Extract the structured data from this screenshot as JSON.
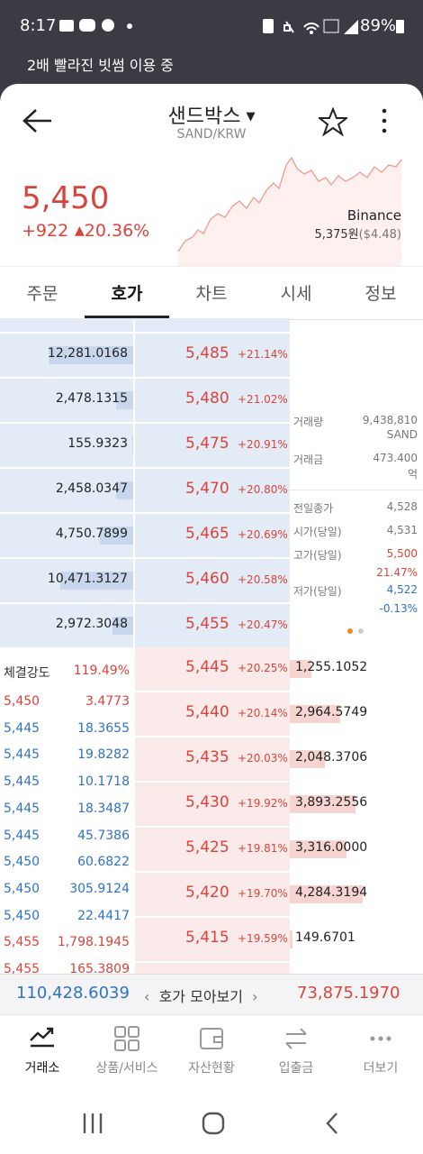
{
  "status_bar": {
    "time": "8:17",
    "battery": "89%"
  },
  "banner": "2배 빨라진 빗썸 이용 중",
  "header": {
    "name": "샌드박스",
    "pair": "SAND/KRW"
  },
  "price": {
    "current": "5,450",
    "change": "+922",
    "change_pct": "20.36%",
    "exchange": "Binance",
    "ref_price": "5,375원",
    "ref_usd": "($4.48)"
  },
  "tabs": {
    "items": [
      "주문",
      "호가",
      "차트",
      "시세",
      "정보"
    ],
    "active": 1
  },
  "asks": [
    {
      "volume": "12,281.0168",
      "price": "5,485",
      "pct": "+21.14%"
    },
    {
      "volume": "2,478.1315",
      "price": "5,480",
      "pct": "+21.02%"
    },
    {
      "volume": "155.9323",
      "price": "5,475",
      "pct": "+20.91%"
    },
    {
      "volume": "2,458.0347",
      "price": "5,470",
      "pct": "+20.80%"
    },
    {
      "volume": "4,750.7899",
      "price": "5,465",
      "pct": "+20.69%"
    },
    {
      "volume": "10,471.3127",
      "price": "5,460",
      "pct": "+20.58%"
    },
    {
      "volume": "2,972.3048",
      "price": "5,455",
      "pct": "+20.47%"
    }
  ],
  "bids": [
    {
      "price": "5,445",
      "pct": "+20.25%",
      "volume": "1,255.1052"
    },
    {
      "price": "5,440",
      "pct": "+20.14%",
      "volume": "2,964.5749"
    },
    {
      "price": "5,435",
      "pct": "+20.03%",
      "volume": "2,048.3706"
    },
    {
      "price": "5,430",
      "pct": "+19.92%",
      "volume": "3,893.2556"
    },
    {
      "price": "5,425",
      "pct": "+19.81%",
      "volume": "3,316.0000"
    },
    {
      "price": "5,420",
      "pct": "+19.70%",
      "volume": "4,284.3194"
    },
    {
      "price": "5,415",
      "pct": "+19.59%",
      "volume": "149.6701"
    }
  ],
  "info": {
    "volume_label": "거래량",
    "volume": "9,438,810",
    "volume_unit": "SAND",
    "amount_label": "거래금",
    "amount": "473.400",
    "amount_unit": "억",
    "prev_close_label": "전일종가",
    "prev_close": "4,528",
    "open_label": "시가(당일)",
    "open": "4,531",
    "high_label": "고가(당일)",
    "high": "5,500",
    "high_pct": "21.47%",
    "low_label": "저가(당일)",
    "low": "4,522",
    "low_pct": "-0.13%"
  },
  "trades": {
    "strength_label": "체결강도",
    "strength": "119.49%",
    "rows": [
      {
        "price": "5,450",
        "qty": "3.4773",
        "color": "#d9443a"
      },
      {
        "price": "5,445",
        "qty": "18.3655",
        "color": "#2f72c4"
      },
      {
        "price": "5,445",
        "qty": "19.8282",
        "color": "#2f72c4"
      },
      {
        "price": "5,445",
        "qty": "10.1718",
        "color": "#2f72c4"
      },
      {
        "price": "5,445",
        "qty": "18.3487",
        "color": "#2f72c4"
      },
      {
        "price": "5,445",
        "qty": "45.7386",
        "color": "#2f72c4"
      },
      {
        "price": "5,450",
        "qty": "60.6822",
        "color": "#2f72c4"
      },
      {
        "price": "5,450",
        "qty": "305.9124",
        "color": "#2f72c4"
      },
      {
        "price": "5,450",
        "qty": "22.4417",
        "color": "#2f72c4"
      },
      {
        "price": "5,455",
        "qty": "1,798.1945",
        "color": "#d9443a"
      },
      {
        "price": "5,455",
        "qty": "165.3809",
        "color": "#d9443a"
      }
    ]
  },
  "footer": {
    "ask_total": "110,428.6039",
    "toggle": "호가 모아보기",
    "bid_total": "73,875.1970"
  },
  "nav": [
    "거래소",
    "상품/서비스",
    "자산현황",
    "입출금",
    "더보기"
  ]
}
